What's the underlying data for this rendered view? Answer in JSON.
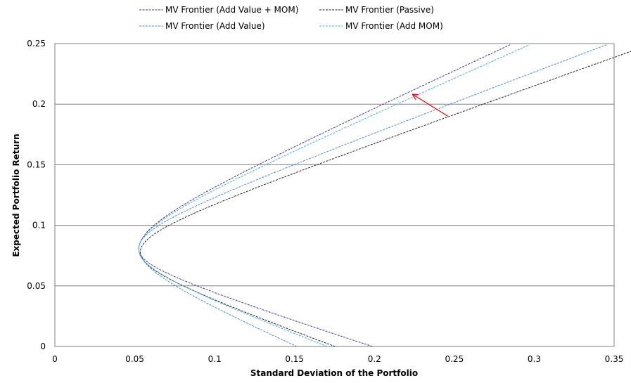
{
  "chart_data": {
    "type": "line",
    "title": "",
    "xlabel": "Standard Deviation of the Portfolio",
    "ylabel": "Expected Portfolio Return",
    "xlim": [
      0,
      0.35
    ],
    "ylim": [
      0,
      0.25
    ],
    "x_ticks": [
      0,
      0.05,
      0.1,
      0.15,
      0.2,
      0.25,
      0.3,
      0.35
    ],
    "x_tick_labels": [
      "0",
      "0.05",
      "0.1",
      "0.15",
      "0.2",
      "0.25",
      "0.3",
      "0.35"
    ],
    "y_ticks": [
      0,
      0.05,
      0.1,
      0.15,
      0.2,
      0.25
    ],
    "y_tick_labels": [
      "0",
      "0.05",
      "0.1",
      "0.15",
      "0.2",
      "0.25"
    ],
    "grid": "horizontal",
    "legend_position": "top",
    "series": [
      {
        "name": "MV Frontier (Add Value + MOM)",
        "color": "#3a3aa8",
        "style": "dashed",
        "points": [
          [
            0.2,
            0
          ],
          [
            0.1,
            0.04
          ],
          [
            0.0525,
            0.08
          ],
          [
            0.1,
            0.129
          ],
          [
            0.2,
            0.194
          ],
          [
            0.3,
            0.259
          ]
        ]
      },
      {
        "name": "MV Frontier (Passive)",
        "color": "#222222",
        "style": "dashed",
        "points": [
          [
            0.175,
            0
          ],
          [
            0.1,
            0.04
          ],
          [
            0.0535,
            0.078
          ],
          [
            0.1,
            0.117
          ],
          [
            0.2,
            0.165
          ],
          [
            0.35,
            0.239
          ]
        ]
      },
      {
        "name": "MV Frontier (Add Value)",
        "color": "#4a8ad8",
        "style": "dashed",
        "points": [
          [
            0.15,
            0
          ],
          [
            0.1,
            0.038
          ],
          [
            0.0525,
            0.081
          ],
          [
            0.1,
            0.123
          ],
          [
            0.2,
            0.178
          ],
          [
            0.35,
            0.251
          ]
        ]
      },
      {
        "name": "MV Frontier (Add MOM)",
        "color": "#4ab0d8",
        "style": "dashed",
        "points": [
          [
            0.17,
            0
          ],
          [
            0.1,
            0.04
          ],
          [
            0.0525,
            0.08
          ],
          [
            0.1,
            0.126
          ],
          [
            0.2,
            0.191
          ],
          [
            0.3,
            0.251
          ]
        ]
      }
    ],
    "annotations": [
      {
        "type": "arrow",
        "color": "#ff0000",
        "from": [
          0.246,
          0.19
        ],
        "to": [
          0.224,
          0.208
        ]
      }
    ]
  }
}
